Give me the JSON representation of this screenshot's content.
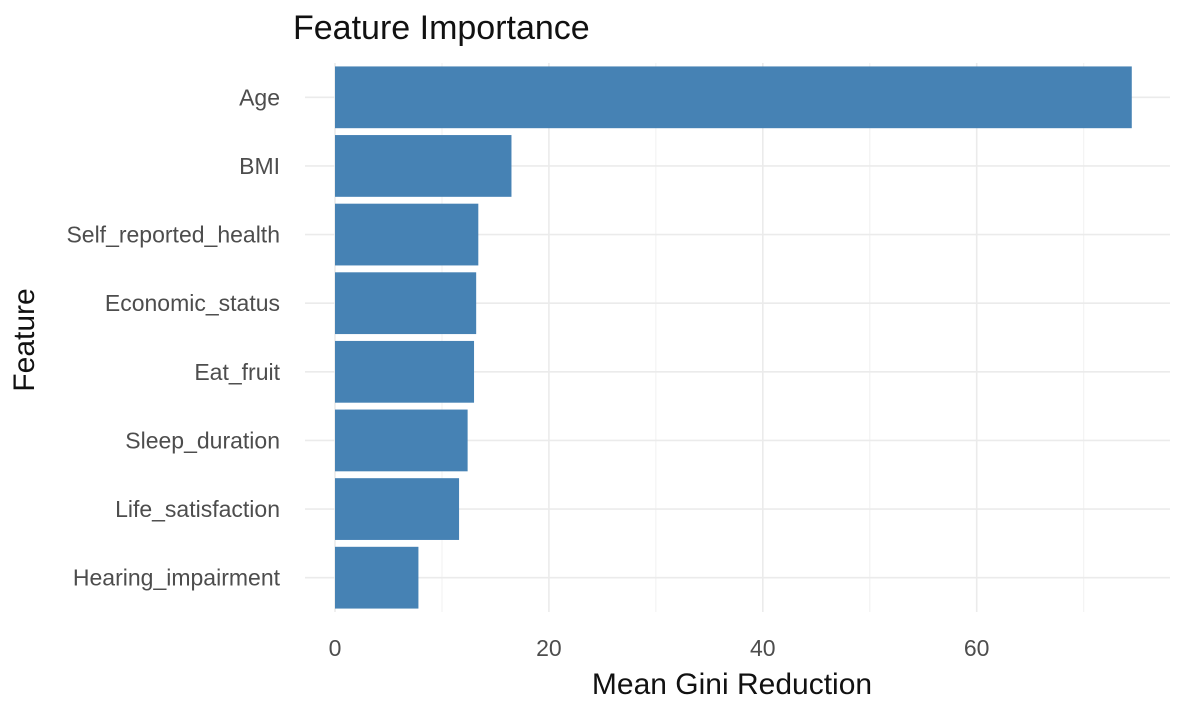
{
  "chart_data": {
    "type": "bar",
    "orientation": "horizontal",
    "title": "Feature Importance",
    "xlabel": "Mean Gini Reduction",
    "ylabel": "Feature",
    "categories": [
      "Age",
      "BMI",
      "Self_reported_health",
      "Economic_status",
      "Eat_fruit",
      "Sleep_duration",
      "Life_satisfaction",
      "Hearing_impairment"
    ],
    "values": [
      74.5,
      16.5,
      13.4,
      13.2,
      13.0,
      12.4,
      11.6,
      7.8
    ],
    "xlim": [
      0,
      78
    ],
    "xticks": [
      0,
      20,
      40,
      60
    ],
    "xtick_labels": [
      "0",
      "20",
      "40",
      "60"
    ],
    "grid": true,
    "bar_color": "#4682b4",
    "legend": "none"
  }
}
